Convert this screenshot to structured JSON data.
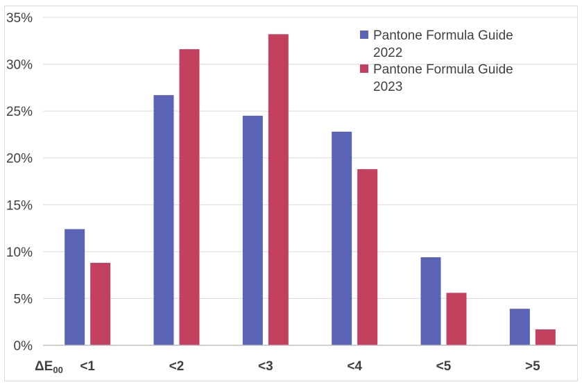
{
  "chart_data": {
    "type": "bar",
    "title": "",
    "xlabel": "ΔE",
    "xlabel_subscript": "00",
    "ylabel": "",
    "categories": [
      "<1",
      "<2",
      "<3",
      "<4",
      "<5",
      ">5"
    ],
    "series": [
      {
        "name": "Pantone Formula Guide 2022",
        "name_lines": [
          "Pantone Formula Guide",
          "2022"
        ],
        "color": "#5b63b7",
        "values": [
          12.4,
          26.7,
          24.5,
          22.8,
          9.4,
          3.9
        ]
      },
      {
        "name": "Pantone Formula Guide 2023",
        "name_lines": [
          "Pantone Formula Guide",
          "2023"
        ],
        "color": "#c3405f",
        "values": [
          8.8,
          31.6,
          33.2,
          18.8,
          5.6,
          1.7
        ]
      }
    ],
    "ylim": [
      0,
      35
    ],
    "yticks": [
      0,
      5,
      10,
      15,
      20,
      25,
      30,
      35
    ],
    "ytick_labels": [
      "0%",
      "5%",
      "10%",
      "15%",
      "20%",
      "25%",
      "30%",
      "35%"
    ],
    "grid": true,
    "legend_position": "top-right",
    "colors": {
      "gridline": "#d9d9d9",
      "axis": "#bfbfbf",
      "text": "#404040"
    }
  }
}
